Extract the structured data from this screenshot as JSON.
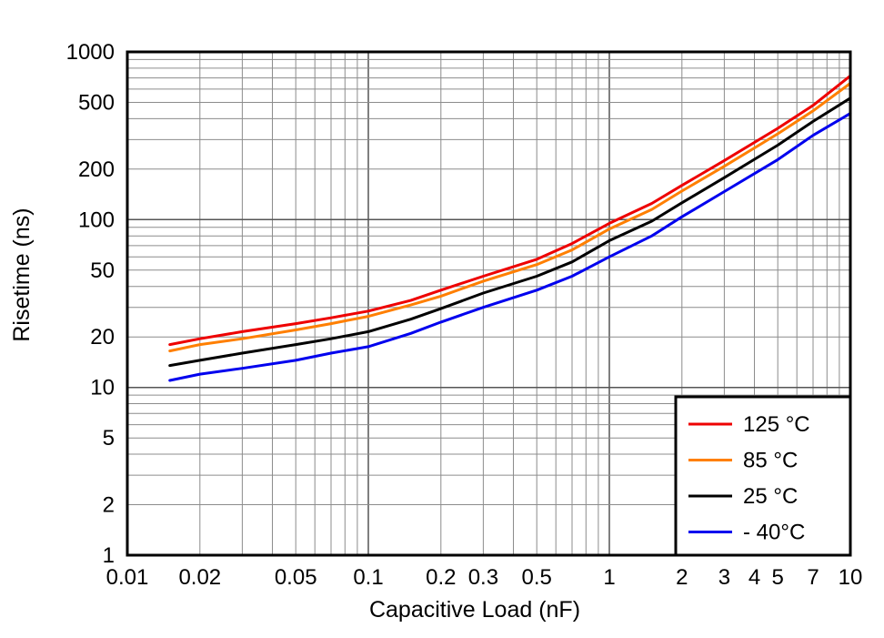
{
  "chart_data": {
    "type": "line",
    "title": "",
    "xlabel": "Capacitive Load (nF)",
    "ylabel": "Risetime (ns)",
    "x_scale": "log",
    "y_scale": "log",
    "xlim": [
      0.01,
      10
    ],
    "ylim": [
      1,
      1000
    ],
    "grid": "log major and minor gridlines, gray, full plot area",
    "legend_position": "lower right, boxed",
    "x_ticks": [
      0.01,
      0.02,
      0.05,
      0.1,
      0.2,
      0.3,
      0.5,
      1,
      2,
      3,
      4,
      5,
      7,
      10
    ],
    "x_tick_labels": [
      "0.01",
      "0.02",
      "0.05",
      "0.1",
      "0.2",
      "0.3",
      "0.5",
      "1",
      "2",
      "3",
      "4",
      "5",
      "7",
      "10"
    ],
    "y_ticks": [
      1,
      2,
      5,
      10,
      20,
      50,
      100,
      200,
      500,
      1000
    ],
    "y_tick_labels": [
      "1",
      "2",
      "5",
      "10",
      "20",
      "50",
      "100",
      "200",
      "500",
      "1000"
    ],
    "x": [
      0.015,
      0.02,
      0.03,
      0.05,
      0.07,
      0.1,
      0.15,
      0.2,
      0.3,
      0.5,
      0.7,
      1,
      1.5,
      2,
      3,
      5,
      7,
      10
    ],
    "series": [
      {
        "name": "125 °C",
        "color": "#ee0000",
        "values": [
          18,
          19.5,
          21.5,
          24,
          26,
          28.5,
          33,
          38,
          46,
          58,
          72,
          95,
          125,
          160,
          225,
          350,
          480,
          720
        ]
      },
      {
        "name": "85 °C",
        "color": "#ff7f00",
        "values": [
          16.5,
          18,
          19.5,
          22,
          24,
          26.5,
          31,
          35,
          43,
          54,
          66,
          88,
          115,
          148,
          208,
          325,
          445,
          650
        ]
      },
      {
        "name": "25 °C",
        "color": "#000000",
        "values": [
          13.5,
          14.5,
          16,
          18,
          19.5,
          21.5,
          25.5,
          29.5,
          36.5,
          46,
          56,
          75,
          98,
          126,
          178,
          278,
          385,
          530
        ]
      },
      {
        "name": "- 40°C",
        "color": "#0000ee",
        "values": [
          11,
          12,
          13,
          14.5,
          16,
          17.5,
          21,
          24.5,
          30,
          38,
          46,
          60,
          80,
          104,
          147,
          228,
          318,
          430
        ]
      }
    ],
    "style": {
      "minor_grid_color": "#8c8c8c",
      "major_grid_color": "#555555",
      "border_color": "#000000",
      "line_width": 3
    }
  }
}
